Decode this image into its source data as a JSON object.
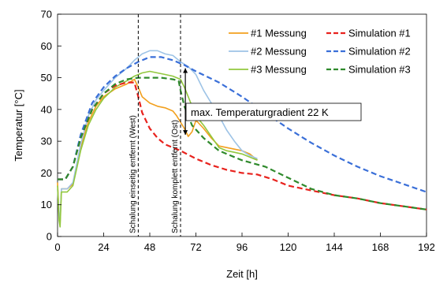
{
  "chart_data": {
    "type": "line",
    "xlabel": "Zeit [h]",
    "ylabel": "Temperatur [°C]",
    "xlim": [
      0,
      192
    ],
    "ylim": [
      0,
      70
    ],
    "xticks": [
      0,
      24,
      48,
      72,
      96,
      120,
      144,
      168,
      192
    ],
    "yticks": [
      0,
      10,
      20,
      30,
      40,
      50,
      60,
      70
    ],
    "grid": false,
    "legend_position": "top-right",
    "series": [
      {
        "name": "#1 Messung",
        "color": "#f2a01e",
        "style": "solid",
        "points": [
          [
            0,
            17
          ],
          [
            0.8,
            6
          ],
          [
            1.3,
            4
          ],
          [
            2,
            15
          ],
          [
            5,
            15
          ],
          [
            8,
            16.5
          ],
          [
            12,
            28
          ],
          [
            16,
            36
          ],
          [
            20,
            41
          ],
          [
            24,
            44
          ],
          [
            30,
            46.5
          ],
          [
            36,
            48
          ],
          [
            40,
            49.5
          ],
          [
            42,
            47
          ],
          [
            44,
            44
          ],
          [
            48,
            42
          ],
          [
            52,
            41
          ],
          [
            56,
            40.5
          ],
          [
            60,
            39.5
          ],
          [
            62,
            38
          ],
          [
            64,
            36
          ],
          [
            66,
            34
          ],
          [
            68,
            31.5
          ],
          [
            70,
            33
          ],
          [
            72,
            36.5
          ],
          [
            73,
            36
          ],
          [
            76,
            34
          ],
          [
            80,
            31
          ],
          [
            84,
            28.5
          ],
          [
            88,
            28
          ],
          [
            92,
            27.5
          ],
          [
            96,
            27
          ],
          [
            100,
            26
          ],
          [
            104,
            24
          ]
        ]
      },
      {
        "name": "#2 Messung",
        "color": "#9dc3e6",
        "style": "solid",
        "points": [
          [
            0,
            15
          ],
          [
            0.8,
            7
          ],
          [
            1.3,
            5
          ],
          [
            2,
            15
          ],
          [
            5,
            15
          ],
          [
            8,
            17
          ],
          [
            12,
            29
          ],
          [
            16,
            38
          ],
          [
            20,
            43
          ],
          [
            24,
            46
          ],
          [
            30,
            50
          ],
          [
            36,
            53
          ],
          [
            40,
            55.5
          ],
          [
            44,
            57.5
          ],
          [
            48,
            58.5
          ],
          [
            52,
            58.5
          ],
          [
            56,
            57.5
          ],
          [
            60,
            57
          ],
          [
            64,
            55
          ],
          [
            68,
            53.5
          ],
          [
            72,
            51
          ],
          [
            76,
            46
          ],
          [
            80,
            42
          ],
          [
            84,
            38
          ],
          [
            88,
            33.5
          ],
          [
            92,
            30
          ],
          [
            96,
            27
          ],
          [
            100,
            25.5
          ],
          [
            104,
            24.5
          ]
        ]
      },
      {
        "name": "#3 Messung",
        "color": "#92c83e",
        "style": "solid",
        "points": [
          [
            0,
            16
          ],
          [
            0.8,
            5
          ],
          [
            1.3,
            3
          ],
          [
            2,
            14
          ],
          [
            5,
            14
          ],
          [
            8,
            16
          ],
          [
            12,
            27
          ],
          [
            16,
            35
          ],
          [
            20,
            40
          ],
          [
            24,
            43.5
          ],
          [
            30,
            47
          ],
          [
            36,
            49
          ],
          [
            40,
            50.5
          ],
          [
            44,
            51.5
          ],
          [
            48,
            52
          ],
          [
            52,
            51.5
          ],
          [
            56,
            51
          ],
          [
            60,
            50.5
          ],
          [
            64,
            49.5
          ],
          [
            66,
            47
          ],
          [
            68,
            44
          ],
          [
            70,
            41
          ],
          [
            72,
            38
          ],
          [
            76,
            35
          ],
          [
            80,
            31.5
          ],
          [
            84,
            28
          ],
          [
            88,
            27
          ],
          [
            92,
            26.5
          ],
          [
            96,
            26
          ],
          [
            100,
            25
          ],
          [
            104,
            24
          ]
        ]
      },
      {
        "name": "Simulation #1",
        "color": "#e8221d",
        "style": "dashed",
        "points": [
          [
            0,
            18
          ],
          [
            4,
            18
          ],
          [
            8,
            22
          ],
          [
            12,
            31
          ],
          [
            18,
            40
          ],
          [
            24,
            45
          ],
          [
            30,
            47.5
          ],
          [
            36,
            48.5
          ],
          [
            40,
            48.5
          ],
          [
            42,
            44
          ],
          [
            44,
            39
          ],
          [
            48,
            34
          ],
          [
            52,
            31
          ],
          [
            56,
            29
          ],
          [
            60,
            28
          ],
          [
            64,
            27
          ],
          [
            72,
            24.5
          ],
          [
            80,
            22.5
          ],
          [
            88,
            21
          ],
          [
            96,
            20
          ],
          [
            104,
            19.5
          ],
          [
            112,
            18
          ],
          [
            120,
            16
          ],
          [
            132,
            14.5
          ],
          [
            144,
            13
          ],
          [
            156,
            12
          ],
          [
            168,
            10.5
          ],
          [
            180,
            9.5
          ],
          [
            192,
            8.5
          ]
        ]
      },
      {
        "name": "Simulation #2",
        "color": "#3a6fd8",
        "style": "dashed",
        "points": [
          [
            0,
            18
          ],
          [
            4,
            18
          ],
          [
            8,
            22
          ],
          [
            12,
            32
          ],
          [
            18,
            42
          ],
          [
            24,
            47
          ],
          [
            30,
            50.5
          ],
          [
            36,
            53
          ],
          [
            42,
            55
          ],
          [
            48,
            56.5
          ],
          [
            54,
            56.5
          ],
          [
            60,
            55.5
          ],
          [
            66,
            54
          ],
          [
            72,
            52
          ],
          [
            84,
            48.5
          ],
          [
            96,
            44
          ],
          [
            108,
            39
          ],
          [
            120,
            34
          ],
          [
            132,
            29.5
          ],
          [
            144,
            25.5
          ],
          [
            156,
            22
          ],
          [
            168,
            19
          ],
          [
            180,
            16.5
          ],
          [
            192,
            14
          ]
        ]
      },
      {
        "name": "Simulation #3",
        "color": "#2f8a2c",
        "style": "dashed",
        "points": [
          [
            0,
            18
          ],
          [
            4,
            18
          ],
          [
            8,
            22
          ],
          [
            12,
            31
          ],
          [
            18,
            40
          ],
          [
            24,
            45
          ],
          [
            30,
            48
          ],
          [
            36,
            49.5
          ],
          [
            42,
            50
          ],
          [
            48,
            50
          ],
          [
            54,
            50
          ],
          [
            60,
            49.5
          ],
          [
            63,
            49
          ],
          [
            64,
            46
          ],
          [
            66,
            41
          ],
          [
            70,
            35
          ],
          [
            76,
            31
          ],
          [
            84,
            27
          ],
          [
            96,
            24
          ],
          [
            108,
            22
          ],
          [
            120,
            18.5
          ],
          [
            132,
            15
          ],
          [
            144,
            13
          ],
          [
            156,
            12
          ],
          [
            168,
            10.5
          ],
          [
            180,
            9.5
          ],
          [
            192,
            8.5
          ]
        ]
      }
    ],
    "vlines": [
      {
        "x": 42,
        "label": "Schalung einseitig entfernt (West)"
      },
      {
        "x": 64,
        "label": "Schalung komplett entfernt (Ost)"
      }
    ],
    "annotation": {
      "text": "max. Temperaturgradient 22 K",
      "arrow_x": 66.5,
      "arrow_y_top": 53,
      "arrow_y_bottom": 32
    }
  }
}
